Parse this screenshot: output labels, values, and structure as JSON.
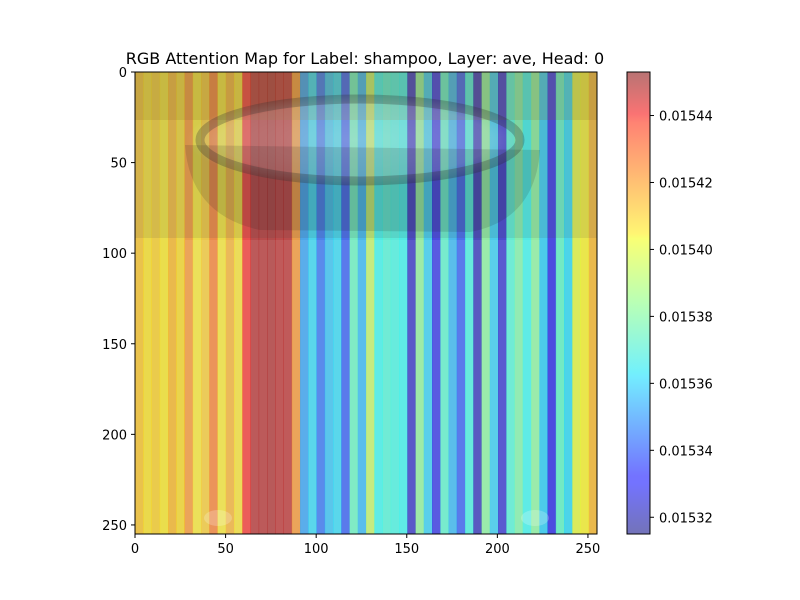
{
  "chart_data": {
    "type": "heatmap",
    "title": "RGB Attention Map for Label: shampoo, Layer: ave, Head: 0",
    "xlabel": "",
    "ylabel": "",
    "xlim": [
      0,
      255
    ],
    "ylim": [
      255,
      0
    ],
    "x_ticks": [
      "0",
      "50",
      "100",
      "150",
      "200",
      "250"
    ],
    "y_ticks": [
      "0",
      "50",
      "100",
      "150",
      "200",
      "250"
    ],
    "grid": false,
    "colormap": "jet",
    "overlay_alpha": 0.5,
    "colorbar": {
      "range": [
        0.015315,
        0.015453
      ],
      "ticks": [
        "0.01532",
        "0.01534",
        "0.01536",
        "0.01538",
        "0.01540",
        "0.01542",
        "0.01544"
      ]
    },
    "column_count": 56,
    "column_values": [
      0.01541,
      0.015405,
      0.015408,
      0.015404,
      0.015412,
      0.015406,
      0.015418,
      0.015404,
      0.015409,
      0.015422,
      0.015404,
      0.015413,
      0.015405,
      0.015435,
      0.015447,
      0.015447,
      0.015448,
      0.015446,
      0.015446,
      0.015418,
      0.015352,
      0.015362,
      0.015344,
      0.015358,
      0.015362,
      0.01534,
      0.015376,
      0.015356,
      0.015392,
      0.015368,
      0.015372,
      0.01537,
      0.015368,
      0.015324,
      0.015383,
      0.01536,
      0.01533,
      0.015374,
      0.015356,
      0.01534,
      0.01537,
      0.015322,
      0.015382,
      0.01536,
      0.015326,
      0.015372,
      0.01538,
      0.015368,
      0.015382,
      0.01536,
      0.01533,
      0.015375,
      0.015362,
      0.015398,
      0.015402,
      0.015412
    ]
  }
}
